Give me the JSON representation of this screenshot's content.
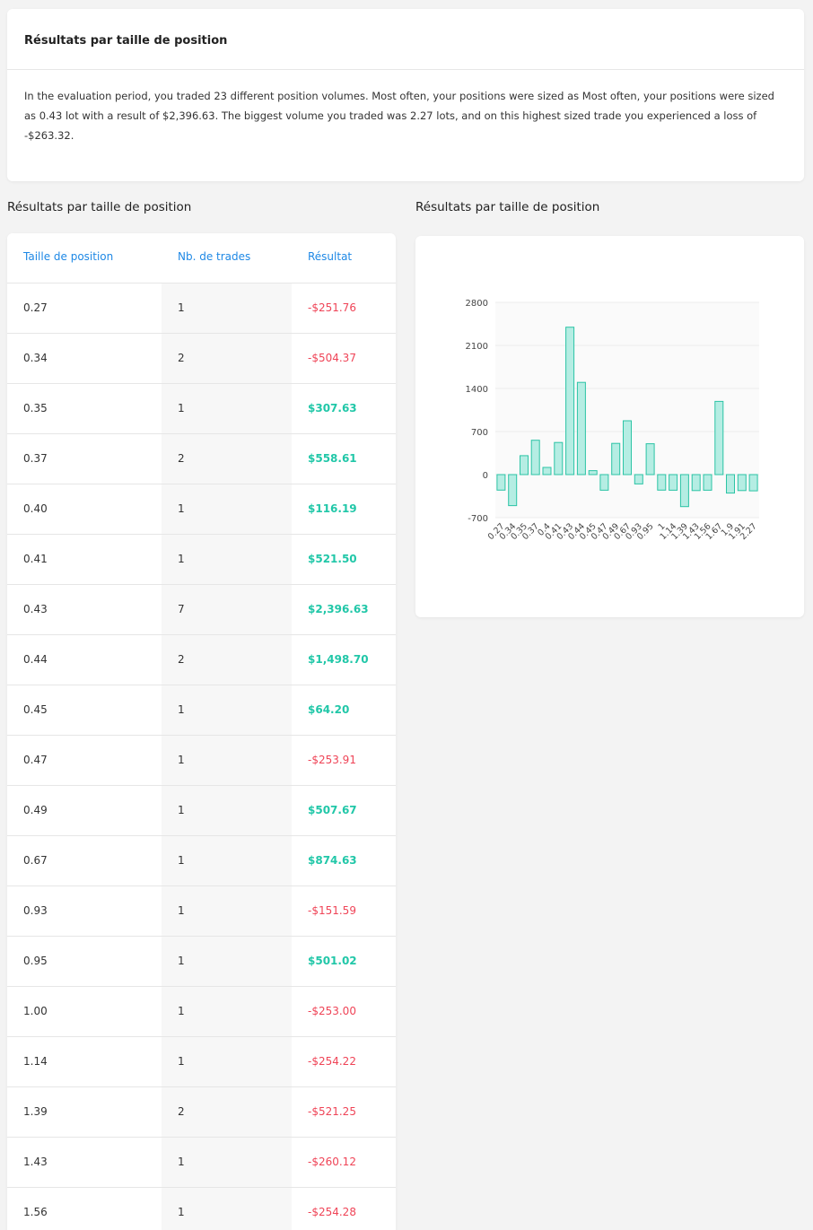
{
  "summary": {
    "title": "Résultats par taille de position",
    "text": "In the evaluation period, you traded 23 different position volumes. Most often, your positions were sized as Most often, your positions were sized as 0.43 lot with a result of $2,396.63. The biggest volume you traded was 2.27 lots, and on this highest sized trade you experienced a loss of -$263.32."
  },
  "table_section": {
    "title": "Résultats par taille de position",
    "headers": [
      "Taille de position",
      "Nb. de trades",
      "Résultat"
    ],
    "rows": [
      {
        "size": "0.27",
        "trades": "1",
        "result": "-$251.76",
        "sign": "neg"
      },
      {
        "size": "0.34",
        "trades": "2",
        "result": "-$504.37",
        "sign": "neg"
      },
      {
        "size": "0.35",
        "trades": "1",
        "result": "$307.63",
        "sign": "pos"
      },
      {
        "size": "0.37",
        "trades": "2",
        "result": "$558.61",
        "sign": "pos"
      },
      {
        "size": "0.40",
        "trades": "1",
        "result": "$116.19",
        "sign": "pos"
      },
      {
        "size": "0.41",
        "trades": "1",
        "result": "$521.50",
        "sign": "pos"
      },
      {
        "size": "0.43",
        "trades": "7",
        "result": "$2,396.63",
        "sign": "pos"
      },
      {
        "size": "0.44",
        "trades": "2",
        "result": "$1,498.70",
        "sign": "pos"
      },
      {
        "size": "0.45",
        "trades": "1",
        "result": "$64.20",
        "sign": "pos"
      },
      {
        "size": "0.47",
        "trades": "1",
        "result": "-$253.91",
        "sign": "neg"
      },
      {
        "size": "0.49",
        "trades": "1",
        "result": "$507.67",
        "sign": "pos"
      },
      {
        "size": "0.67",
        "trades": "1",
        "result": "$874.63",
        "sign": "pos"
      },
      {
        "size": "0.93",
        "trades": "1",
        "result": "-$151.59",
        "sign": "neg"
      },
      {
        "size": "0.95",
        "trades": "1",
        "result": "$501.02",
        "sign": "pos"
      },
      {
        "size": "1.00",
        "trades": "1",
        "result": "-$253.00",
        "sign": "neg"
      },
      {
        "size": "1.14",
        "trades": "1",
        "result": "-$254.22",
        "sign": "neg"
      },
      {
        "size": "1.39",
        "trades": "2",
        "result": "-$521.25",
        "sign": "neg"
      },
      {
        "size": "1.43",
        "trades": "1",
        "result": "-$260.12",
        "sign": "neg"
      },
      {
        "size": "1.56",
        "trades": "1",
        "result": "-$254.28",
        "sign": "neg"
      }
    ]
  },
  "chart_section": {
    "title": "Résultats par taille de position"
  },
  "colors": {
    "header_blue": "#1e88e5",
    "positive": "#21c7a8",
    "negative": "#ef4457",
    "bar_fill": "#b5ede3",
    "bar_stroke": "#2cc4a5"
  },
  "chart_data": {
    "type": "bar",
    "categories": [
      "0.27",
      "0.34",
      "0.35",
      "0.37",
      "0.4",
      "0.41",
      "0.43",
      "0.44",
      "0.45",
      "0.47",
      "0.49",
      "0.67",
      "0.93",
      "0.95",
      "1",
      "1.14",
      "1.39",
      "1.43",
      "1.56",
      "1.67",
      "1.9",
      "1.91",
      "2.27"
    ],
    "values": [
      -251.76,
      -504.37,
      307.63,
      558.61,
      116.19,
      521.5,
      2396.63,
      1498.7,
      64.2,
      -253.91,
      507.67,
      874.63,
      -151.59,
      501.02,
      -253.0,
      -254.22,
      -521.25,
      -260.12,
      -254.28,
      1190,
      -300,
      -260,
      -263.32
    ],
    "yticks": [
      "2800",
      "2100",
      "1400",
      "700",
      "0",
      "-700"
    ],
    "ylim": [
      -700,
      2800
    ],
    "grid": true,
    "legend": false
  }
}
